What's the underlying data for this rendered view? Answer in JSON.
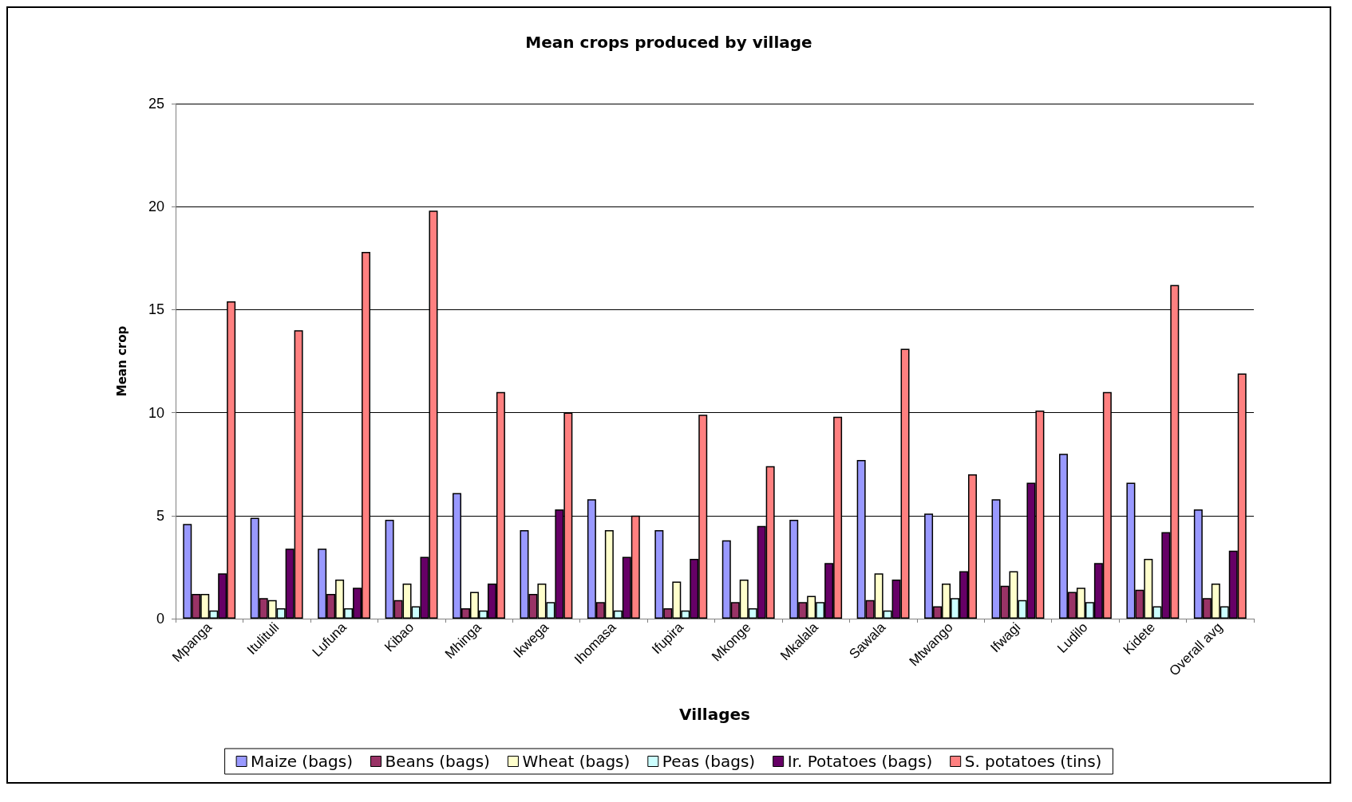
{
  "chart_data": {
    "type": "bar",
    "title": "Mean crops produced by village",
    "xlabel": "Villages",
    "ylabel": "Mean crop",
    "categories": [
      "Mpanga",
      "Itulituli",
      "Lufuna",
      "Kibao",
      "Mhinga",
      "Ikwega",
      "Ihomasa",
      "Ifupira",
      "Mkonge",
      "Mkalala",
      "Sawala",
      "Mtwango",
      "Ifwagi",
      "Ludilo",
      "Kidete",
      "Overall avg"
    ],
    "series": [
      {
        "name": "Maize (bags)",
        "color": "#9999ff",
        "values": [
          4.6,
          4.9,
          3.4,
          4.8,
          6.1,
          4.3,
          5.8,
          4.3,
          3.8,
          4.8,
          7.7,
          5.1,
          5.8,
          8.0,
          6.6,
          5.3
        ]
      },
      {
        "name": "Beans (bags)",
        "color": "#993366",
        "values": [
          1.2,
          1.0,
          1.2,
          0.9,
          0.5,
          1.2,
          0.8,
          0.5,
          0.8,
          0.8,
          0.9,
          0.6,
          1.6,
          1.3,
          1.4,
          1.0
        ]
      },
      {
        "name": "Wheat (bags)",
        "color": "#ffffcc",
        "values": [
          1.2,
          0.9,
          1.9,
          1.7,
          1.3,
          1.7,
          4.3,
          1.8,
          1.9,
          1.1,
          2.2,
          1.7,
          2.3,
          1.5,
          2.9,
          1.7
        ]
      },
      {
        "name": "Peas (bags)",
        "color": "#ccffff",
        "values": [
          0.4,
          0.5,
          0.5,
          0.6,
          0.4,
          0.8,
          0.4,
          0.4,
          0.5,
          0.8,
          0.4,
          1.0,
          0.9,
          0.8,
          0.6,
          0.6
        ]
      },
      {
        "name": "Ir. Potatoes (bags)",
        "color": "#660066",
        "values": [
          2.2,
          3.4,
          1.5,
          3.0,
          1.7,
          5.3,
          3.0,
          2.9,
          4.5,
          2.7,
          1.9,
          2.3,
          6.6,
          2.7,
          4.2,
          3.3
        ]
      },
      {
        "name": "S. potatoes (tins)",
        "color": "#ff8080",
        "values": [
          15.4,
          14.0,
          17.8,
          19.8,
          11.0,
          10.0,
          5.0,
          9.9,
          7.4,
          9.8,
          13.1,
          7.0,
          10.1,
          11.0,
          16.2,
          11.9
        ]
      }
    ],
    "ylim": [
      0,
      25
    ],
    "yticks": [
      0,
      5,
      10,
      15,
      20,
      25
    ],
    "grid": "y",
    "legend": "bottom"
  }
}
